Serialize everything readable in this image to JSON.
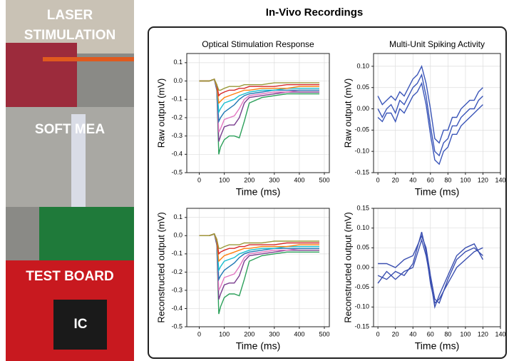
{
  "figure_title": "In-Vivo Recordings",
  "photo_labels": [
    "LASER",
    "STIMULATION",
    "SOFT MEA",
    "TEST BOARD",
    "IC"
  ],
  "chart_data": [
    {
      "type": "line",
      "title": "Optical Stimulation Response",
      "x_label": "Time (ms)",
      "y_label": "Raw output (mV)",
      "x": [
        0,
        20,
        40,
        60,
        70,
        78,
        85,
        100,
        120,
        140,
        160,
        180,
        200,
        250,
        300,
        350,
        400,
        450,
        480
      ],
      "xlim": [
        -50,
        520
      ],
      "ylim": [
        -0.5,
        0.15
      ],
      "xticks": [
        0,
        100,
        200,
        300,
        400,
        500
      ],
      "yticks": [
        -0.5,
        -0.4,
        -0.3,
        -0.2,
        -0.1,
        {
          "value": 0,
          "label": "0.0"
        },
        0.1
      ],
      "series": [
        {
          "color": "#2ca05a",
          "values": [
            0,
            0,
            0,
            0.01,
            -0.05,
            -0.4,
            -0.36,
            -0.32,
            -0.3,
            -0.3,
            -0.31,
            -0.22,
            -0.12,
            -0.09,
            -0.08,
            -0.07,
            -0.07,
            -0.07,
            -0.07
          ]
        },
        {
          "color": "#7a3d8f",
          "values": [
            0,
            0,
            0,
            0.01,
            -0.05,
            -0.33,
            -0.3,
            -0.25,
            -0.24,
            -0.24,
            -0.2,
            -0.12,
            -0.09,
            -0.08,
            -0.07,
            -0.06,
            -0.06,
            -0.06,
            -0.06
          ]
        },
        {
          "color": "#e377c2",
          "values": [
            0,
            0,
            0,
            0.01,
            -0.04,
            -0.28,
            -0.26,
            -0.21,
            -0.2,
            -0.19,
            -0.15,
            -0.1,
            -0.08,
            -0.07,
            -0.06,
            -0.06,
            -0.05,
            -0.05,
            -0.05
          ]
        },
        {
          "color": "#1f77b4",
          "values": [
            0,
            0,
            0,
            0.01,
            -0.04,
            -0.22,
            -0.2,
            -0.17,
            -0.15,
            -0.13,
            -0.1,
            -0.08,
            -0.07,
            -0.06,
            -0.05,
            -0.05,
            -0.05,
            -0.05,
            -0.05
          ]
        },
        {
          "color": "#17becf",
          "values": [
            0,
            0,
            0,
            0.01,
            -0.03,
            -0.17,
            -0.15,
            -0.12,
            -0.11,
            -0.1,
            -0.08,
            -0.07,
            -0.06,
            -0.05,
            -0.05,
            -0.04,
            -0.04,
            -0.04,
            -0.04
          ]
        },
        {
          "color": "#ff7f0e",
          "values": [
            0,
            0,
            0,
            0.01,
            -0.03,
            -0.12,
            -0.11,
            -0.09,
            -0.08,
            -0.07,
            -0.06,
            -0.05,
            -0.05,
            -0.04,
            -0.04,
            -0.04,
            -0.03,
            -0.03,
            -0.03
          ]
        },
        {
          "color": "#d62728",
          "values": [
            0,
            0,
            0,
            0.01,
            -0.02,
            -0.08,
            -0.07,
            -0.06,
            -0.05,
            -0.05,
            -0.04,
            -0.04,
            -0.03,
            -0.03,
            -0.03,
            -0.02,
            -0.02,
            -0.02,
            -0.02
          ]
        },
        {
          "color": "#9a9a3a",
          "values": [
            0,
            0,
            0,
            0.01,
            -0.02,
            -0.05,
            -0.05,
            -0.04,
            -0.03,
            -0.03,
            -0.03,
            -0.02,
            -0.02,
            -0.02,
            -0.01,
            -0.01,
            -0.01,
            -0.01,
            -0.01
          ]
        }
      ]
    },
    {
      "type": "line",
      "title": "Multi-Unit Spiking Activity",
      "x_label": "Time (ms)",
      "y_label": "Raw output (mV)",
      "x": [
        0,
        5,
        10,
        15,
        20,
        25,
        30,
        35,
        40,
        45,
        50,
        55,
        60,
        65,
        70,
        75,
        80,
        85,
        90,
        95,
        100,
        105,
        110,
        115,
        120
      ],
      "xlim": [
        -5,
        140
      ],
      "ylim": [
        -0.15,
        0.13
      ],
      "xticks": [
        0,
        20,
        40,
        60,
        80,
        100,
        120,
        140
      ],
      "yticks": [
        -0.15,
        {
          "value": -0.1,
          "label": "-0.10"
        },
        -0.05,
        {
          "value": 0,
          "label": "0.00"
        },
        0.05,
        {
          "value": 0.1,
          "label": "0.10"
        }
      ],
      "series": [
        {
          "color": "#3a55b8",
          "values": [
            0.03,
            0.01,
            0.02,
            0.03,
            0.02,
            0.04,
            0.03,
            0.05,
            0.07,
            0.08,
            0.1,
            0.06,
            0,
            -0.07,
            -0.08,
            -0.05,
            -0.05,
            -0.02,
            -0.02,
            0,
            0.01,
            0.02,
            0.02,
            0.04,
            0.05
          ]
        },
        {
          "color": "#3a55b8",
          "values": [
            0,
            -0.02,
            0,
            0.01,
            -0.01,
            0.02,
            0.01,
            0.03,
            0.05,
            0.06,
            0.08,
            0.03,
            -0.04,
            -0.1,
            -0.11,
            -0.08,
            -0.07,
            -0.04,
            -0.04,
            -0.02,
            -0.01,
            0,
            0,
            0.02,
            0.03
          ]
        },
        {
          "color": "#3a55b8",
          "values": [
            -0.02,
            -0.03,
            -0.01,
            -0.01,
            -0.03,
            0,
            -0.01,
            0.01,
            0.03,
            0.04,
            0.06,
            0.01,
            -0.06,
            -0.12,
            -0.13,
            -0.1,
            -0.09,
            -0.06,
            -0.06,
            -0.04,
            -0.03,
            -0.02,
            -0.01,
            0,
            0.01
          ]
        }
      ]
    },
    {
      "type": "line",
      "x_label": "Time (ms)",
      "y_label": "Reconstructed output (mV)",
      "x": [
        0,
        20,
        40,
        60,
        70,
        78,
        85,
        100,
        120,
        140,
        160,
        180,
        200,
        250,
        300,
        350,
        400,
        450,
        480
      ],
      "xlim": [
        -50,
        520
      ],
      "ylim": [
        -0.5,
        0.15
      ],
      "xticks": [
        0,
        100,
        200,
        300,
        400,
        500
      ],
      "yticks": [
        -0.5,
        -0.4,
        -0.3,
        -0.2,
        -0.1,
        {
          "value": 0,
          "label": "0.0"
        },
        0.1
      ],
      "series": [
        {
          "color": "#2ca05a",
          "values": [
            0,
            0,
            0,
            0.01,
            -0.05,
            -0.43,
            -0.39,
            -0.34,
            -0.32,
            -0.32,
            -0.33,
            -0.24,
            -0.14,
            -0.11,
            -0.1,
            -0.09,
            -0.09,
            -0.09,
            -0.09
          ]
        },
        {
          "color": "#7a3d8f",
          "values": [
            0,
            0,
            0,
            0.01,
            -0.05,
            -0.35,
            -0.32,
            -0.27,
            -0.26,
            -0.26,
            -0.22,
            -0.14,
            -0.11,
            -0.1,
            -0.09,
            -0.08,
            -0.08,
            -0.08,
            -0.08
          ]
        },
        {
          "color": "#e377c2",
          "values": [
            0,
            0,
            0,
            0.01,
            -0.04,
            -0.3,
            -0.28,
            -0.23,
            -0.22,
            -0.21,
            -0.17,
            -0.12,
            -0.1,
            -0.09,
            -0.08,
            -0.08,
            -0.07,
            -0.07,
            -0.07
          ]
        },
        {
          "color": "#1f77b4",
          "values": [
            0,
            0,
            0,
            0.01,
            -0.04,
            -0.24,
            -0.22,
            -0.19,
            -0.17,
            -0.15,
            -0.12,
            -0.1,
            -0.09,
            -0.08,
            -0.07,
            -0.07,
            -0.07,
            -0.07,
            -0.07
          ]
        },
        {
          "color": "#17becf",
          "values": [
            0,
            0,
            0,
            0.01,
            -0.03,
            -0.19,
            -0.17,
            -0.14,
            -0.13,
            -0.12,
            -0.1,
            -0.09,
            -0.08,
            -0.07,
            -0.07,
            -0.06,
            -0.06,
            -0.06,
            -0.06
          ]
        },
        {
          "color": "#ff7f0e",
          "values": [
            0,
            0,
            0,
            0.01,
            -0.03,
            -0.14,
            -0.13,
            -0.11,
            -0.1,
            -0.09,
            -0.08,
            -0.07,
            -0.07,
            -0.06,
            -0.06,
            -0.06,
            -0.05,
            -0.05,
            -0.05
          ]
        },
        {
          "color": "#d62728",
          "values": [
            0,
            0,
            0,
            0.01,
            -0.02,
            -0.1,
            -0.09,
            -0.08,
            -0.07,
            -0.07,
            -0.06,
            -0.06,
            -0.05,
            -0.05,
            -0.05,
            -0.04,
            -0.04,
            -0.04,
            -0.04
          ]
        },
        {
          "color": "#9a9a3a",
          "values": [
            0,
            0,
            0,
            0.01,
            -0.02,
            -0.07,
            -0.07,
            -0.06,
            -0.05,
            -0.05,
            -0.05,
            -0.04,
            -0.04,
            -0.04,
            -0.03,
            -0.03,
            -0.03,
            -0.03,
            -0.03
          ]
        }
      ]
    },
    {
      "type": "line",
      "x_label": "Time (ms)",
      "y_label": "Reconstructed output (mV)",
      "x": [
        0,
        10,
        20,
        30,
        40,
        50,
        55,
        60,
        65,
        70,
        80,
        90,
        100,
        110,
        120
      ],
      "xlim": [
        -5,
        140
      ],
      "ylim": [
        -0.15,
        0.15
      ],
      "xticks": [
        0,
        20,
        40,
        60,
        80,
        100,
        120,
        140
      ],
      "yticks": [
        -0.15,
        {
          "value": -0.1,
          "label": "-0.10"
        },
        -0.05,
        {
          "value": 0,
          "label": "0.00"
        },
        0.05,
        {
          "value": 0.1,
          "label": "0.10"
        },
        0.15
      ],
      "series": [
        {
          "color": "#3a4fb0",
          "values": [
            0.01,
            0.01,
            0,
            0.02,
            0.03,
            0.08,
            0.05,
            -0.02,
            -0.08,
            -0.09,
            -0.03,
            0.02,
            0.04,
            0.05,
            0.03
          ]
        },
        {
          "color": "#3a4fb0",
          "values": [
            -0.02,
            -0.03,
            -0.01,
            -0.02,
            0.01,
            0.09,
            0.04,
            -0.04,
            -0.09,
            -0.08,
            -0.04,
            0,
            0.02,
            0.04,
            0.05
          ]
        },
        {
          "color": "#3a4fb0",
          "values": [
            -0.04,
            -0.01,
            -0.03,
            -0.01,
            0,
            0.07,
            0.03,
            -0.03,
            -0.1,
            -0.07,
            -0.02,
            0.03,
            0.05,
            0.06,
            0.02
          ]
        }
      ]
    }
  ]
}
